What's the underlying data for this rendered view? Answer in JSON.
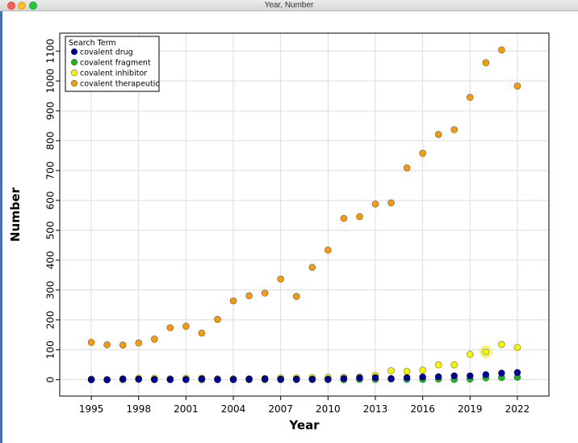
{
  "window": {
    "title": "Year, Number"
  },
  "colors": {
    "covalent drug": "#000099",
    "covalent fragment": "#22b522",
    "covalent inhibitor": "#f5f500",
    "covalent therapeutic": "#f39c12"
  },
  "chart_data": {
    "type": "scatter",
    "title": "",
    "xlabel": "Year",
    "ylabel": "Number",
    "xlim": [
      1993.0,
      2024.0
    ],
    "ylim": [
      -55,
      1160
    ],
    "xticks": [
      1995,
      1998,
      2001,
      2004,
      2007,
      2010,
      2013,
      2016,
      2019,
      2022
    ],
    "yticks": [
      0,
      100,
      200,
      300,
      400,
      500,
      600,
      700,
      800,
      900,
      1000,
      1100
    ],
    "grid": true,
    "legend": {
      "title": "Search Term",
      "position": "top-left"
    },
    "x": [
      1995,
      1996,
      1997,
      1998,
      1999,
      2000,
      2001,
      2002,
      2003,
      2004,
      2005,
      2006,
      2007,
      2008,
      2009,
      2010,
      2011,
      2012,
      2013,
      2014,
      2015,
      2016,
      2017,
      2018,
      2019,
      2020,
      2021,
      2022
    ],
    "series": [
      {
        "name": "covalent drug",
        "values": [
          0,
          0,
          3,
          2,
          1,
          1,
          1,
          3,
          1,
          1,
          2,
          3,
          2,
          2,
          2,
          2,
          4,
          6,
          7,
          4,
          7,
          9,
          10,
          13,
          13,
          17,
          22,
          24
        ]
      },
      {
        "name": "covalent fragment",
        "values": [
          0,
          0,
          0,
          1,
          0,
          0,
          0,
          0,
          0,
          0,
          0,
          0,
          0,
          0,
          0,
          0,
          0,
          1,
          1,
          2,
          1,
          1,
          2,
          1,
          2,
          6,
          7,
          8
        ]
      },
      {
        "name": "covalent inhibitor",
        "values": [
          2,
          0,
          1,
          5,
          5,
          3,
          5,
          5,
          3,
          3,
          3,
          4,
          6,
          6,
          7,
          8,
          8,
          9,
          15,
          30,
          28,
          32,
          50,
          50,
          85,
          93,
          118,
          108
        ]
      },
      {
        "name": "covalent therapeutic",
        "values": [
          125,
          117,
          116,
          123,
          136,
          174,
          179,
          156,
          202,
          264,
          281,
          290,
          337,
          279,
          376,
          434,
          540,
          546,
          588,
          592,
          709,
          758,
          821,
          837,
          945,
          1061,
          1104,
          983
        ]
      }
    ],
    "highlight": {
      "series": "covalent inhibitor",
      "x": 2020
    }
  }
}
